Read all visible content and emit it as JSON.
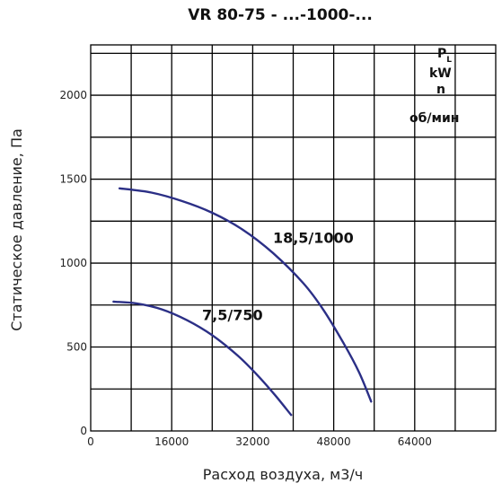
{
  "chart_data": {
    "type": "line",
    "title": "VR 80-75 - ...-1000-...",
    "xlabel": "Расход воздуха, м3/ч",
    "ylabel": "Статическое давление, Па",
    "xlim": [
      0,
      80000
    ],
    "ylim": [
      0,
      2300
    ],
    "x_ticks": [
      0,
      16000,
      32000,
      48000,
      64000
    ],
    "x_tick_labels": [
      "0",
      "16000",
      "32000",
      "48000",
      "64000"
    ],
    "y_ticks": [
      0,
      500,
      1000,
      1500,
      2000
    ],
    "y_tick_labels": [
      "0",
      "500",
      "1000",
      "1500",
      "2000"
    ],
    "grid": true,
    "legend": {
      "line1": "P",
      "line1_sub": "L",
      "line2": "kW",
      "line3": "n",
      "line4": "об/мин"
    },
    "series": [
      {
        "name": "18,5/1000",
        "points": [
          [
            5700,
            1445
          ],
          [
            12000,
            1420
          ],
          [
            18000,
            1370
          ],
          [
            24000,
            1300
          ],
          [
            30000,
            1200
          ],
          [
            36000,
            1060
          ],
          [
            42000,
            880
          ],
          [
            46000,
            720
          ],
          [
            50000,
            520
          ],
          [
            53000,
            350
          ],
          [
            55400,
            175
          ]
        ]
      },
      {
        "name": "7,5/750",
        "points": [
          [
            4500,
            770
          ],
          [
            9000,
            760
          ],
          [
            14000,
            725
          ],
          [
            19000,
            660
          ],
          [
            24000,
            570
          ],
          [
            29000,
            450
          ],
          [
            33000,
            330
          ],
          [
            36500,
            210
          ],
          [
            39600,
            95
          ]
        ]
      }
    ]
  }
}
